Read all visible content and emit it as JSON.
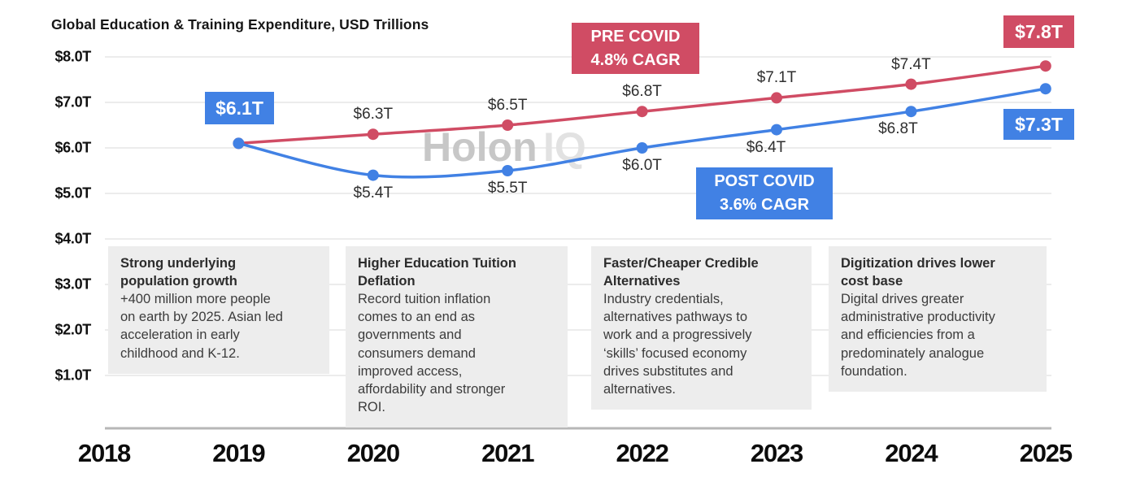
{
  "chart_data": {
    "type": "line",
    "title": "Global Education & Training Expenditure, USD Trillions",
    "x": [
      2019,
      2020,
      2021,
      2022,
      2023,
      2024,
      2025
    ],
    "x_axis_labels": [
      "2018",
      "2019",
      "2020",
      "2021",
      "2022",
      "2023",
      "2024",
      "2025"
    ],
    "y_axis": {
      "tick_labels": [
        "$8.0T",
        "$7.0T",
        "$6.0T",
        "$5.0T",
        "$4.0T",
        "$3.0T",
        "$2.0T",
        "$1.0T"
      ],
      "tick_values": [
        8,
        7,
        6,
        5,
        4,
        3,
        2,
        1
      ],
      "range": [
        0,
        8
      ]
    },
    "grid": "horizontal",
    "legend_position": "inline-callouts",
    "series": [
      {
        "name": "PRE COVID",
        "cagr": "4.8% CAGR",
        "color": "#d04c64",
        "values": [
          6.1,
          6.3,
          6.5,
          6.8,
          7.1,
          7.4,
          7.8
        ],
        "point_labels": [
          "",
          "$6.3T",
          "$6.5T",
          "$6.8T",
          "$7.1T",
          "$7.4T",
          ""
        ],
        "label_side": "above",
        "label_dx": [
          0,
          0,
          0,
          0,
          0,
          0,
          0
        ]
      },
      {
        "name": "POST COVID",
        "cagr": "3.6% CAGR",
        "color": "#4181e4",
        "values": [
          6.1,
          5.4,
          5.5,
          6.0,
          6.4,
          6.8,
          7.3
        ],
        "point_labels": [
          "",
          "$5.4T",
          "$5.5T",
          "$6.0T",
          "$6.4T",
          "$6.8T",
          ""
        ],
        "label_side": "below",
        "label_dx": [
          0,
          0,
          0,
          0,
          -13,
          -16,
          0
        ]
      }
    ]
  },
  "callouts": {
    "start_value": {
      "text": "$6.1T"
    },
    "pre_covid": {
      "line1": "PRE COVID",
      "line2": "4.8% CAGR"
    },
    "post_covid": {
      "line1": "POST COVID",
      "line2": "3.6% CAGR"
    },
    "red_end": {
      "text": "$7.8T"
    },
    "blue_end": {
      "text": "$7.3T"
    }
  },
  "annotations": [
    {
      "heading": "Strong underlying\npopulation growth",
      "body": "+400 million more people\non earth by 2025. Asian led\nacceleration in early\nchildhood and K-12."
    },
    {
      "heading": "Higher Education Tuition\nDeflation",
      "body": "Record tuition inflation\ncomes to an end as\ngovernments and\nconsumers demand\nimproved access,\naffordability and stronger\nROI."
    },
    {
      "heading": "Faster/Cheaper Credible\nAlternatives",
      "body": "Industry credentials,\nalternatives pathways to\nwork and a progressively\n‘skills’ focused economy\ndrives substitutes and\nalternatives."
    },
    {
      "heading": "Digitization drives lower\ncost base",
      "body": "Digital drives greater\nadministrative productivity\nand efficiencies from a\npredominately analogue\nfoundation."
    }
  ],
  "watermark": {
    "bold": "Holon",
    "light": "IQ"
  },
  "colors": {
    "red": "#d04c64",
    "blue": "#4181e4",
    "grid": "#ececec",
    "axis": "#b7b7b7",
    "annotation_bg": "#ededed",
    "point_label": "#2f2f2f",
    "callout_text": "#ffffff",
    "watermark_bold": "#c7c7c7",
    "watermark_light": "#e2e2e2"
  }
}
